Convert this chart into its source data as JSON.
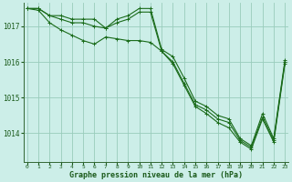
{
  "title": "Graphe pression niveau de la mer (hPa)",
  "background_color": "#cceee8",
  "grid_color": "#99ccbb",
  "line_color": "#1a6b1a",
  "marker_color": "#1a6b1a",
  "x_ticks": [
    0,
    1,
    2,
    3,
    4,
    5,
    6,
    7,
    8,
    9,
    10,
    11,
    12,
    13,
    14,
    15,
    16,
    17,
    18,
    19,
    20,
    21,
    22,
    23
  ],
  "y_ticks": [
    1014,
    1015,
    1016,
    1017
  ],
  "ylim": [
    1013.2,
    1017.65
  ],
  "xlim": [
    -0.3,
    23.3
  ],
  "series": [
    [
      1017.5,
      1017.5,
      1017.3,
      1017.3,
      1017.2,
      1017.2,
      1017.2,
      1016.95,
      1017.2,
      1017.3,
      1017.5,
      1017.5,
      1016.35,
      1016.15,
      1015.55,
      1014.9,
      1014.75,
      1014.5,
      1014.4,
      1013.85,
      1013.65,
      1014.55,
      1013.85,
      1016.05
    ],
    [
      1017.5,
      1017.5,
      1017.3,
      1017.2,
      1017.1,
      1017.1,
      1017.0,
      1016.95,
      1017.1,
      1017.2,
      1017.4,
      1017.4,
      1016.3,
      1016.0,
      1015.4,
      1014.8,
      1014.65,
      1014.4,
      1014.3,
      1013.8,
      1013.6,
      1014.45,
      1013.8,
      1016.0
    ],
    [
      1017.5,
      1017.45,
      1017.1,
      1016.9,
      1016.75,
      1016.6,
      1016.5,
      1016.7,
      1016.65,
      1016.6,
      1016.6,
      1016.55,
      1016.3,
      1015.95,
      1015.35,
      1014.75,
      1014.55,
      1014.3,
      1014.15,
      1013.75,
      1013.55,
      1014.4,
      1013.75,
      1015.95
    ]
  ]
}
